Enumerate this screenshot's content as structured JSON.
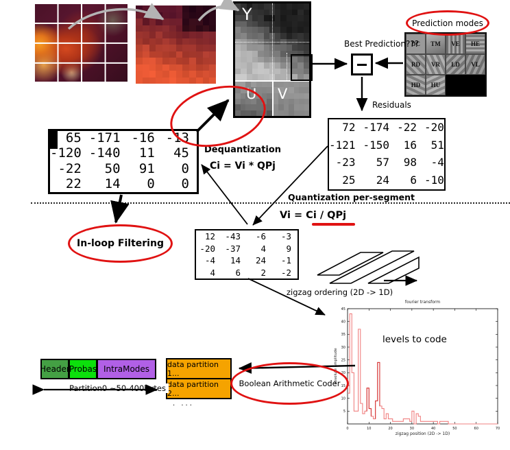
{
  "diagram": {
    "source_labels": {
      "y": "Y",
      "u": "U",
      "v": "V"
    },
    "prediction": {
      "ellipse": "Prediction modes",
      "question": "Best Prediction???",
      "modes": [
        "DC",
        "TM",
        "VE",
        "HE",
        "RD",
        "VR",
        "LD",
        "VL",
        "HD",
        "HU"
      ]
    },
    "residuals": {
      "label": "Residuals",
      "matrix": [
        [
          "72",
          "-174",
          "-22",
          "-20"
        ],
        [
          "-121",
          "-150",
          "16",
          "51"
        ],
        [
          "-23",
          "57",
          "98",
          "-4"
        ],
        [
          "25",
          "24",
          "6",
          "-10"
        ]
      ]
    },
    "dequantization": {
      "title": "Dequantization",
      "formula": "Ci = Vi * QPj",
      "matrix": [
        [
          "65",
          "-171",
          "-16",
          "-13"
        ],
        [
          "-120",
          "-140",
          "11",
          "45"
        ],
        [
          "-22",
          "50",
          "91",
          "0"
        ],
        [
          "22",
          "14",
          "0",
          "0"
        ]
      ]
    },
    "quantization": {
      "section": "Quantization per-segment",
      "formula": "Vi = Ci / QPj",
      "matrix": [
        [
          "12",
          "-43",
          "-6",
          "-3"
        ],
        [
          "-20",
          "-37",
          "4",
          "9"
        ],
        [
          "-4",
          "14",
          "24",
          "-1"
        ],
        [
          "4",
          "6",
          "2",
          "-2"
        ]
      ]
    },
    "inloop": "In-loop Filtering",
    "zigzag": "zigzag ordering  (2D -> 1D)",
    "bitstream": {
      "header": "Header",
      "probas": "Probas",
      "intramodes": "IntraModes",
      "partition0": "Partition0 ~50-400bytes",
      "partition1": "data partition 1...",
      "partition2": "data partition 2...",
      "more": ". ...",
      "coder": "Boolean Arithmetic Coder"
    }
  },
  "chart_data": {
    "type": "line",
    "style": "step",
    "title": "fourier transform",
    "xlabel": "zigzag position (2D -> 1D)",
    "ylabel": "absolute amplitude",
    "annotation": "levels to code",
    "xlim": [
      0,
      70
    ],
    "ylim": [
      0,
      45
    ],
    "xticks": [
      0,
      10,
      20,
      30,
      40,
      50,
      60,
      70
    ],
    "yticks": [
      5,
      10,
      15,
      20,
      25,
      30,
      35,
      40,
      45
    ],
    "line_color": "#f08080",
    "dark_line_color": "#d23030",
    "x_is_index": true,
    "values": [
      12,
      43,
      20,
      5,
      5,
      37,
      8,
      4,
      5,
      14,
      6,
      3,
      2,
      9,
      24,
      7,
      6,
      2,
      4,
      2,
      2,
      1,
      1,
      1,
      1,
      1,
      2,
      2,
      2,
      1,
      5,
      0,
      4,
      3,
      1,
      1,
      1,
      1,
      1,
      1,
      1,
      1,
      0,
      1,
      1,
      1,
      1,
      0,
      0,
      0,
      0,
      0,
      0,
      0,
      0,
      0,
      0,
      0,
      0,
      0,
      0,
      0,
      0,
      0,
      0,
      0,
      0,
      0,
      0,
      0,
      0
    ]
  },
  "colors": {
    "annotation_red": "#e01212",
    "header_green": "#44a044",
    "probas_green": "#0ce00c",
    "intramodes_purple": "#b160e6",
    "partition_orange": "#f5a300"
  }
}
